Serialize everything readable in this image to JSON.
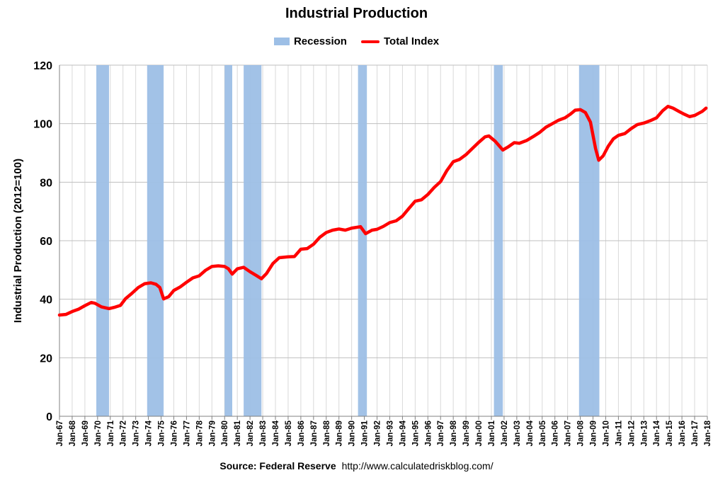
{
  "chart_data": {
    "type": "line",
    "title": "Industrial Production",
    "ylabel": "Industrial Production (2012=100)",
    "xlabel": "",
    "ylim": [
      0,
      120
    ],
    "yticks": [
      "0",
      "20",
      "40",
      "60",
      "80",
      "100",
      "120"
    ],
    "xlim": [
      1967.0,
      2018.0
    ],
    "grid": true,
    "legend_position": "top-center",
    "legend": [
      {
        "name": "Recession",
        "color": "#9dbfe6",
        "kind": "area"
      },
      {
        "name": "Total Index",
        "color": "#ff0000",
        "kind": "line"
      }
    ],
    "xtick_labels": [
      "Jan-67",
      "Jan-68",
      "Jan-69",
      "Jan-70",
      "Jan-71",
      "Jan-72",
      "Jan-73",
      "Jan-74",
      "Jan-75",
      "Jan-76",
      "Jan-77",
      "Jan-78",
      "Jan-79",
      "Jan-80",
      "Jan-81",
      "Jan-82",
      "Jan-83",
      "Jan-84",
      "Jan-85",
      "Jan-86",
      "Jan-87",
      "Jan-88",
      "Jan-89",
      "Jan-90",
      "Jan-91",
      "Jan-92",
      "Jan-93",
      "Jan-94",
      "Jan-95",
      "Jan-96",
      "Jan-97",
      "Jan-98",
      "Jan-99",
      "Jan-00",
      "Jan-01",
      "Jan-02",
      "Jan-03",
      "Jan-04",
      "Jan-05",
      "Jan-06",
      "Jan-07",
      "Jan-08",
      "Jan-09",
      "Jan-10",
      "Jan-11",
      "Jan-12",
      "Jan-13",
      "Jan-14",
      "Jan-15",
      "Jan-16",
      "Jan-17",
      "Jan-18"
    ],
    "recessions": [
      {
        "start": 1969.9,
        "end": 1970.9
      },
      {
        "start": 1973.9,
        "end": 1975.2
      },
      {
        "start": 1980.0,
        "end": 1980.6
      },
      {
        "start": 1981.5,
        "end": 1982.9
      },
      {
        "start": 1990.5,
        "end": 1991.2
      },
      {
        "start": 2001.2,
        "end": 2001.9
      },
      {
        "start": 2007.9,
        "end": 2009.5
      }
    ],
    "series": [
      {
        "name": "Total Index",
        "color": "#ff0000",
        "x": [
          1967.0,
          1967.5,
          1968.0,
          1968.5,
          1969.0,
          1969.5,
          1969.8,
          1970.3,
          1970.9,
          1971.3,
          1971.8,
          1972.2,
          1972.7,
          1973.2,
          1973.7,
          1974.2,
          1974.6,
          1974.9,
          1975.2,
          1975.6,
          1976.0,
          1976.5,
          1977.0,
          1977.5,
          1978.0,
          1978.5,
          1979.0,
          1979.5,
          1980.0,
          1980.3,
          1980.6,
          1981.0,
          1981.5,
          1982.0,
          1982.5,
          1982.9,
          1983.3,
          1983.8,
          1984.3,
          1985.0,
          1985.5,
          1986.0,
          1986.5,
          1987.0,
          1987.5,
          1988.0,
          1988.5,
          1989.0,
          1989.5,
          1990.0,
          1990.7,
          1991.1,
          1991.6,
          1992.0,
          1992.5,
          1993.0,
          1993.5,
          1994.0,
          1994.5,
          1995.0,
          1995.5,
          1996.0,
          1996.5,
          1997.0,
          1997.5,
          1998.0,
          1998.5,
          1999.0,
          1999.5,
          2000.0,
          2000.5,
          2000.8,
          2001.3,
          2001.9,
          2002.3,
          2002.8,
          2003.2,
          2003.8,
          2004.3,
          2004.8,
          2005.3,
          2005.8,
          2006.3,
          2006.8,
          2007.2,
          2007.6,
          2008.0,
          2008.4,
          2008.8,
          2009.2,
          2009.45,
          2009.8,
          2010.2,
          2010.6,
          2011.0,
          2011.5,
          2012.0,
          2012.5,
          2013.0,
          2013.5,
          2014.0,
          2014.5,
          2014.9,
          2015.3,
          2015.8,
          2016.2,
          2016.6,
          2017.0,
          2017.3,
          2017.6,
          2017.9
        ],
        "y": [
          34.6,
          34.8,
          35.8,
          36.6,
          37.8,
          38.9,
          38.6,
          37.4,
          36.8,
          37.2,
          37.9,
          40.2,
          42.0,
          44.0,
          45.3,
          45.6,
          45.1,
          44.0,
          40.1,
          40.9,
          43.0,
          44.2,
          45.8,
          47.3,
          48.0,
          49.9,
          51.2,
          51.4,
          51.2,
          50.4,
          48.6,
          50.4,
          50.9,
          49.4,
          48.1,
          47.0,
          48.8,
          52.2,
          54.2,
          54.5,
          54.6,
          57.1,
          57.3,
          58.8,
          61.2,
          62.8,
          63.6,
          64.0,
          63.6,
          64.3,
          64.8,
          62.4,
          63.6,
          63.9,
          64.9,
          66.2,
          66.8,
          68.4,
          71.0,
          73.5,
          74.0,
          75.8,
          78.2,
          80.2,
          84.0,
          87.0,
          87.8,
          89.4,
          91.5,
          93.6,
          95.5,
          95.8,
          94.0,
          91.0,
          92.0,
          93.5,
          93.3,
          94.3,
          95.6,
          97.0,
          98.8,
          100.0,
          101.2,
          102.0,
          103.2,
          104.6,
          104.8,
          103.8,
          100.5,
          91.5,
          87.5,
          89.0,
          92.3,
          94.8,
          96.0,
          96.6,
          98.3,
          99.7,
          100.2,
          101.0,
          102.0,
          104.5,
          105.9,
          105.3,
          104.1,
          103.2,
          102.4,
          102.8,
          103.5,
          104.2,
          105.3
        ]
      }
    ]
  },
  "source": {
    "label": "Source: Federal Reserve",
    "url": "http://www.calculatedriskblog.com/"
  }
}
